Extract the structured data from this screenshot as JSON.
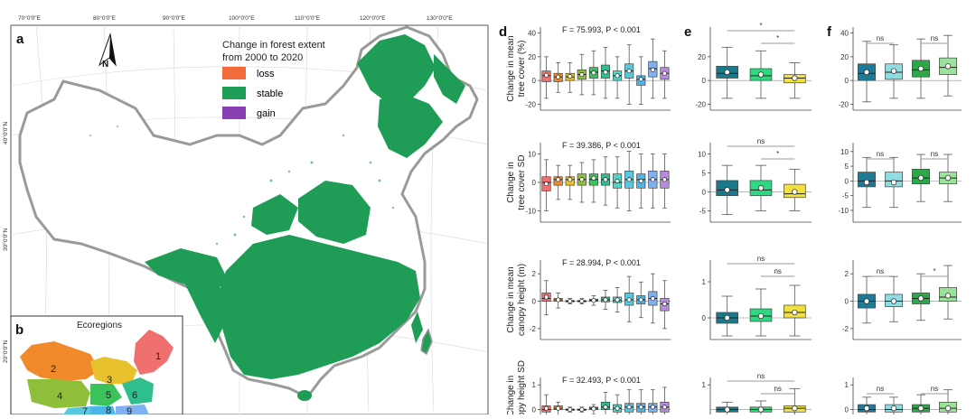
{
  "map": {
    "panel_label": "a",
    "lon_labels": [
      "70°0'0\"E",
      "80°0'0\"E",
      "90°0'0\"E",
      "100°0'0\"E",
      "110°0'0\"E",
      "120°0'0\"E",
      "130°0'0\"E"
    ],
    "lat_labels": [
      "40°0'0\"N",
      "30°0'0\"N",
      "20°0'0\"N"
    ],
    "north_label": "N",
    "legend_title_1": "Change in forest extent",
    "legend_title_2": "from 2000 to 2020",
    "legend": [
      {
        "label": "loss",
        "color": "#f26b3a"
      },
      {
        "label": "stable",
        "color": "#1f9c55"
      },
      {
        "label": "gain",
        "color": "#8a3fb2"
      }
    ]
  },
  "inset": {
    "panel_label": "b",
    "title": "Ecoregions",
    "regions": [
      {
        "label": "1",
        "color": "#f07070"
      },
      {
        "label": "2",
        "color": "#f08a2a"
      },
      {
        "label": "3",
        "color": "#e8c12e"
      },
      {
        "label": "4",
        "color": "#8fbf3a"
      },
      {
        "label": "5",
        "color": "#3cc25a"
      },
      {
        "label": "6",
        "color": "#2fbf8f"
      },
      {
        "label": "7",
        "color": "#58c8e0"
      },
      {
        "label": "8",
        "color": "#4cb6e8"
      },
      {
        "label": "9",
        "color": "#7fb0f0"
      }
    ]
  },
  "panel_labels": {
    "d": "d",
    "e": "e",
    "f": "f"
  },
  "colors": {
    "ecoregions": [
      "#f07070",
      "#f08a2a",
      "#e8c12e",
      "#8fbf3a",
      "#3cc25a",
      "#2fbf8f",
      "#4cd8c8",
      "#58c8e0",
      "#4cb6e8",
      "#7fb0f0",
      "#b78be0"
    ],
    "e_groups": [
      "#1a7a8c",
      "#2ed880",
      "#f0e040"
    ],
    "f_groups": [
      "#1f7a96",
      "#8fdde0",
      "#2aa84a",
      "#9be39a"
    ]
  },
  "chart_data": [
    {
      "type": "box",
      "panel": "d",
      "row": 1,
      "ylabel_lines": [
        "Change in mean",
        "tree cover (%)"
      ],
      "stat": "F = 75.993, P < 0.001",
      "ylim": [
        -25,
        45
      ],
      "yticks": [
        "40",
        "20",
        "0",
        "-20"
      ],
      "ytick_values": [
        40,
        20,
        0,
        -20
      ],
      "boxes": [
        {
          "q1": -1,
          "med": 4,
          "q3": 8,
          "mean": 4.5,
          "lo": -15,
          "hi": 20
        },
        {
          "q1": -1,
          "med": 3,
          "q3": 6,
          "mean": 3,
          "lo": -10,
          "hi": 15
        },
        {
          "q1": 0,
          "med": 3,
          "q3": 6,
          "mean": 3.5,
          "lo": -10,
          "hi": 15
        },
        {
          "q1": 1,
          "med": 5,
          "q3": 9,
          "mean": 5,
          "lo": -12,
          "hi": 22
        },
        {
          "q1": 2,
          "med": 7,
          "q3": 11,
          "mean": 6.5,
          "lo": -12,
          "hi": 25
        },
        {
          "q1": 2,
          "med": 8,
          "q3": 13,
          "mean": 7,
          "lo": -15,
          "hi": 28
        },
        {
          "q1": 0,
          "med": 4,
          "q3": 8,
          "mean": 4,
          "lo": -15,
          "hi": 20
        },
        {
          "q1": 2,
          "med": 8,
          "q3": 14,
          "mean": 8,
          "lo": -20,
          "hi": 30
        },
        {
          "q1": -4,
          "med": 1,
          "q3": 4,
          "mean": 1,
          "lo": -20,
          "hi": 20
        },
        {
          "q1": 3,
          "med": 10,
          "q3": 16,
          "mean": 9,
          "lo": -15,
          "hi": 35
        },
        {
          "q1": 1,
          "med": 6,
          "q3": 11,
          "mean": 6,
          "lo": -15,
          "hi": 25
        }
      ]
    },
    {
      "type": "box",
      "panel": "d",
      "row": 2,
      "ylabel_lines": [
        "Change in",
        "tree cover SD"
      ],
      "stat": "F = 39.386, P < 0.001",
      "ylim": [
        -14,
        14
      ],
      "yticks": [
        "10",
        "0",
        "-10"
      ],
      "ytick_values": [
        10,
        0,
        -10
      ],
      "boxes": [
        {
          "q1": -3,
          "med": 0,
          "q3": 2,
          "mean": -0.5,
          "lo": -10,
          "hi": 8
        },
        {
          "q1": -1,
          "med": 1,
          "q3": 2,
          "mean": 1,
          "lo": -6,
          "hi": 6
        },
        {
          "q1": -1,
          "med": 1,
          "q3": 2,
          "mean": 1,
          "lo": -6,
          "hi": 6
        },
        {
          "q1": -1,
          "med": 1,
          "q3": 3,
          "mean": 1,
          "lo": -7,
          "hi": 7
        },
        {
          "q1": -1,
          "med": 1,
          "q3": 3,
          "mean": 1.5,
          "lo": -7,
          "hi": 8
        },
        {
          "q1": -1,
          "med": 1,
          "q3": 3,
          "mean": 1,
          "lo": -8,
          "hi": 9
        },
        {
          "q1": -2,
          "med": 0,
          "q3": 3,
          "mean": 0.5,
          "lo": -9,
          "hi": 9
        },
        {
          "q1": -2,
          "med": 1,
          "q3": 4,
          "mean": 1,
          "lo": -10,
          "hi": 11
        },
        {
          "q1": -2,
          "med": 1,
          "q3": 3,
          "mean": 0.5,
          "lo": -9,
          "hi": 10
        },
        {
          "q1": -2,
          "med": 1,
          "q3": 4,
          "mean": 1,
          "lo": -9,
          "hi": 10
        },
        {
          "q1": -2,
          "med": 1,
          "q3": 4,
          "mean": 1,
          "lo": -9,
          "hi": 10
        }
      ]
    },
    {
      "type": "box",
      "panel": "d",
      "row": 3,
      "ylabel_lines": [
        "Change in mean",
        "canopy height (m)"
      ],
      "stat": "F = 28.994, P < 0.001",
      "ylim": [
        -2.8,
        3
      ],
      "yticks": [
        "2",
        "0",
        "-2"
      ],
      "ytick_values": [
        2,
        0,
        -2
      ],
      "boxes": [
        {
          "q1": 0,
          "med": 0.2,
          "q3": 0.6,
          "mean": 0.3,
          "lo": -1,
          "hi": 1.5
        },
        {
          "q1": 0,
          "med": 0.1,
          "q3": 0.2,
          "mean": 0.1,
          "lo": -0.5,
          "hi": 0.6
        },
        {
          "q1": 0,
          "med": 0,
          "q3": 0.05,
          "mean": 0,
          "lo": -0.2,
          "hi": 0.2
        },
        {
          "q1": 0,
          "med": 0,
          "q3": 0.05,
          "mean": 0,
          "lo": -0.2,
          "hi": 0.2
        },
        {
          "q1": 0,
          "med": 0.05,
          "q3": 0.15,
          "mean": 0.05,
          "lo": -0.3,
          "hi": 0.4
        },
        {
          "q1": -0.05,
          "med": 0.1,
          "q3": 0.3,
          "mean": 0.1,
          "lo": -0.6,
          "hi": 0.8
        },
        {
          "q1": -0.1,
          "med": 0.05,
          "q3": 0.3,
          "mean": 0.1,
          "lo": -0.8,
          "hi": 1
        },
        {
          "q1": -0.3,
          "med": 0.1,
          "q3": 0.6,
          "mean": 0.1,
          "lo": -1.5,
          "hi": 1.8
        },
        {
          "q1": -0.2,
          "med": 0.1,
          "q3": 0.4,
          "mean": 0.1,
          "lo": -1.2,
          "hi": 1.4
        },
        {
          "q1": -0.3,
          "med": 0.2,
          "q3": 0.7,
          "mean": 0.2,
          "lo": -1.6,
          "hi": 2
        },
        {
          "q1": -0.7,
          "med": -0.2,
          "q3": 0.2,
          "mean": -0.2,
          "lo": -2,
          "hi": 1.5
        }
      ]
    },
    {
      "type": "box",
      "panel": "d",
      "row": 4,
      "ylabel_lines": [
        "Change in",
        "canopy height SD"
      ],
      "stat": "F = 32.493, P < 0.001",
      "ylim": [
        -0.2,
        1.3
      ],
      "yticks": [
        "1",
        "0"
      ],
      "ytick_values": [
        1,
        0
      ],
      "boxes": [
        {
          "q1": -0.1,
          "med": 0,
          "q3": 0.15,
          "mean": 0.05,
          "lo": -0.5,
          "hi": 0.6
        },
        {
          "q1": 0,
          "med": 0.05,
          "q3": 0.15,
          "mean": 0.05,
          "lo": -0.3,
          "hi": 0.3
        },
        {
          "q1": 0,
          "med": 0,
          "q3": 0.02,
          "mean": 0,
          "lo": -0.1,
          "hi": 0.1
        },
        {
          "q1": 0,
          "med": 0,
          "q3": 0.02,
          "mean": 0,
          "lo": -0.1,
          "hi": 0.1
        },
        {
          "q1": 0,
          "med": 0.05,
          "q3": 0.1,
          "mean": 0.03,
          "lo": -0.2,
          "hi": 0.2
        },
        {
          "q1": 0,
          "med": 0.1,
          "q3": 0.3,
          "mean": 0.1,
          "lo": -0.5,
          "hi": 0.7
        },
        {
          "q1": -0.1,
          "med": 0.05,
          "q3": 0.2,
          "mean": 0.05,
          "lo": -0.5,
          "hi": 0.6
        },
        {
          "q1": -0.1,
          "med": 0.1,
          "q3": 0.25,
          "mean": 0.1,
          "lo": -0.6,
          "hi": 0.8
        },
        {
          "q1": -0.1,
          "med": 0.1,
          "q3": 0.25,
          "mean": 0.1,
          "lo": -0.6,
          "hi": 0.8
        },
        {
          "q1": -0.1,
          "med": 0.1,
          "q3": 0.25,
          "mean": 0.1,
          "lo": -0.6,
          "hi": 0.8
        },
        {
          "q1": -0.1,
          "med": 0.1,
          "q3": 0.3,
          "mean": 0.1,
          "lo": -0.6,
          "hi": 0.9
        }
      ]
    },
    {
      "type": "box",
      "panel": "e",
      "row": 1,
      "ylim": [
        -25,
        45
      ],
      "yticks": [
        "20",
        "0",
        "-20"
      ],
      "ytick_values": [
        20,
        0,
        -20
      ],
      "sig": [
        {
          "label": "*",
          "from": 0,
          "to": 2,
          "level": 1
        },
        {
          "label": "*",
          "from": 1,
          "to": 2,
          "level": 0
        }
      ],
      "boxes": [
        {
          "q1": 2,
          "med": 6,
          "q3": 12,
          "mean": 7,
          "lo": -15,
          "hi": 28
        },
        {
          "q1": 0,
          "med": 4,
          "q3": 10,
          "mean": 5,
          "lo": -15,
          "hi": 25
        },
        {
          "q1": -2,
          "med": 2,
          "q3": 5,
          "mean": 2,
          "lo": -15,
          "hi": 15
        }
      ]
    },
    {
      "type": "box",
      "panel": "e",
      "row": 2,
      "ylim": [
        -8,
        13
      ],
      "yticks": [
        "10",
        "5",
        "0",
        "-5"
      ],
      "ytick_values": [
        10,
        5,
        0,
        -5
      ],
      "sig": [
        {
          "label": "ns",
          "from": 0,
          "to": 2,
          "level": 1
        },
        {
          "label": "*",
          "from": 1,
          "to": 2,
          "level": 0
        }
      ],
      "boxes": [
        {
          "q1": -1,
          "med": 0.5,
          "q3": 3,
          "mean": 0.5,
          "lo": -6,
          "hi": 7
        },
        {
          "q1": -1,
          "med": 0.5,
          "q3": 3,
          "mean": 1,
          "lo": -5,
          "hi": 7
        },
        {
          "q1": -1.5,
          "med": -0.5,
          "q3": 2,
          "mean": 0,
          "lo": -5,
          "hi": 6
        }
      ]
    },
    {
      "type": "box",
      "panel": "e",
      "row": 3,
      "ylim": [
        -0.6,
        1.6
      ],
      "yticks": [
        "1",
        "0"
      ],
      "ytick_values": [
        1,
        0
      ],
      "sig": [
        {
          "label": "ns",
          "from": 0,
          "to": 2,
          "level": 1
        },
        {
          "label": "ns",
          "from": 1,
          "to": 2,
          "level": 0
        }
      ],
      "boxes": [
        {
          "q1": -0.15,
          "med": 0,
          "q3": 0.15,
          "mean": 0,
          "lo": -0.5,
          "hi": 0.6
        },
        {
          "q1": -0.1,
          "med": 0.05,
          "q3": 0.25,
          "mean": 0.05,
          "lo": -0.5,
          "hi": 0.8
        },
        {
          "q1": 0,
          "med": 0.15,
          "q3": 0.35,
          "mean": 0.15,
          "lo": -0.5,
          "hi": 0.9
        }
      ]
    },
    {
      "type": "box",
      "panel": "e",
      "row": 4,
      "ylim": [
        -0.2,
        1.3
      ],
      "yticks": [
        "1"
      ],
      "ytick_values": [
        1
      ],
      "sig": [
        {
          "label": "ns",
          "from": 0,
          "to": 2,
          "level": 1
        },
        {
          "label": "ns",
          "from": 1,
          "to": 2,
          "level": 0
        }
      ],
      "boxes": [
        {
          "q1": -0.1,
          "med": 0,
          "q3": 0.1,
          "mean": 0,
          "lo": -0.5,
          "hi": 0.3
        },
        {
          "q1": -0.1,
          "med": 0,
          "q3": 0.1,
          "mean": 0,
          "lo": -0.5,
          "hi": 0.35
        },
        {
          "q1": -0.1,
          "med": 0.05,
          "q3": 0.15,
          "mean": 0.05,
          "lo": -0.5,
          "hi": 0.85
        }
      ]
    },
    {
      "type": "box",
      "panel": "f",
      "row": 1,
      "ylim": [
        -25,
        45
      ],
      "yticks": [
        "40",
        "20",
        "0",
        "-20"
      ],
      "ytick_values": [
        40,
        20,
        0,
        -20
      ],
      "sig": [
        {
          "label": "ns",
          "from": 0,
          "to": 1,
          "level": 0
        },
        {
          "label": "ns",
          "from": 2,
          "to": 3,
          "level": 0
        }
      ],
      "boxes": [
        {
          "q1": 0,
          "med": 6,
          "q3": 14,
          "mean": 7,
          "lo": -18,
          "hi": 33
        },
        {
          "q1": 1,
          "med": 7,
          "q3": 14,
          "mean": 8,
          "lo": -15,
          "hi": 30
        },
        {
          "q1": 3,
          "med": 9,
          "q3": 17,
          "mean": 10,
          "lo": -15,
          "hi": 35
        },
        {
          "q1": 5,
          "med": 11,
          "q3": 19,
          "mean": 12,
          "lo": -13,
          "hi": 38
        }
      ]
    },
    {
      "type": "box",
      "panel": "f",
      "row": 2,
      "ylim": [
        -14,
        13
      ],
      "yticks": [
        "10",
        "5",
        "0",
        "-5",
        "-10"
      ],
      "ytick_values": [
        10,
        5,
        0,
        -5,
        -10
      ],
      "sig": [
        {
          "label": "ns",
          "from": 0,
          "to": 1,
          "level": 0
        },
        {
          "label": "ns",
          "from": 2,
          "to": 3,
          "level": 0
        }
      ],
      "boxes": [
        {
          "q1": -2,
          "med": 0,
          "q3": 3,
          "mean": -0.5,
          "lo": -9,
          "hi": 8
        },
        {
          "q1": -2,
          "med": 0,
          "q3": 3,
          "mean": -0.5,
          "lo": -9,
          "hi": 8
        },
        {
          "q1": -1,
          "med": 1,
          "q3": 4,
          "mean": 1,
          "lo": -7,
          "hi": 9
        },
        {
          "q1": -1,
          "med": 1,
          "q3": 3,
          "mean": 1,
          "lo": -7,
          "hi": 9
        }
      ]
    },
    {
      "type": "box",
      "panel": "f",
      "row": 3,
      "ylim": [
        -2.8,
        3
      ],
      "yticks": [
        "2",
        "0",
        "-2"
      ],
      "ytick_values": [
        2,
        0,
        -2
      ],
      "sig": [
        {
          "label": "ns",
          "from": 0,
          "to": 1,
          "level": 0
        },
        {
          "label": "*",
          "from": 2,
          "to": 3,
          "level": 0
        }
      ],
      "boxes": [
        {
          "q1": -0.5,
          "med": 0,
          "q3": 0.5,
          "mean": 0,
          "lo": -1.6,
          "hi": 1.8
        },
        {
          "q1": -0.4,
          "med": 0,
          "q3": 0.5,
          "mean": 0,
          "lo": -1.5,
          "hi": 1.8
        },
        {
          "q1": -0.2,
          "med": 0.2,
          "q3": 0.6,
          "mean": 0.2,
          "lo": -1.4,
          "hi": 2
        },
        {
          "q1": 0,
          "med": 0.3,
          "q3": 1,
          "mean": 0.4,
          "lo": -1.3,
          "hi": 2.6
        }
      ]
    },
    {
      "type": "box",
      "panel": "f",
      "row": 4,
      "ylim": [
        -0.2,
        1.3
      ],
      "yticks": [
        "1",
        "0"
      ],
      "ytick_values": [
        1,
        0
      ],
      "sig": [
        {
          "label": "ns",
          "from": 0,
          "to": 1,
          "level": 0
        },
        {
          "label": "ns",
          "from": 2,
          "to": 3,
          "level": 0
        }
      ],
      "boxes": [
        {
          "q1": -0.1,
          "med": 0,
          "q3": 0.2,
          "mean": 0.05,
          "lo": -0.5,
          "hi": 0.5
        },
        {
          "q1": -0.1,
          "med": 0,
          "q3": 0.2,
          "mean": 0.05,
          "lo": -0.5,
          "hi": 0.5
        },
        {
          "q1": -0.1,
          "med": 0.05,
          "q3": 0.2,
          "mean": 0.05,
          "lo": -0.5,
          "hi": 0.6
        },
        {
          "q1": -0.1,
          "med": 0.05,
          "q3": 0.3,
          "mean": 0.05,
          "lo": -0.5,
          "hi": 0.8
        }
      ]
    }
  ]
}
